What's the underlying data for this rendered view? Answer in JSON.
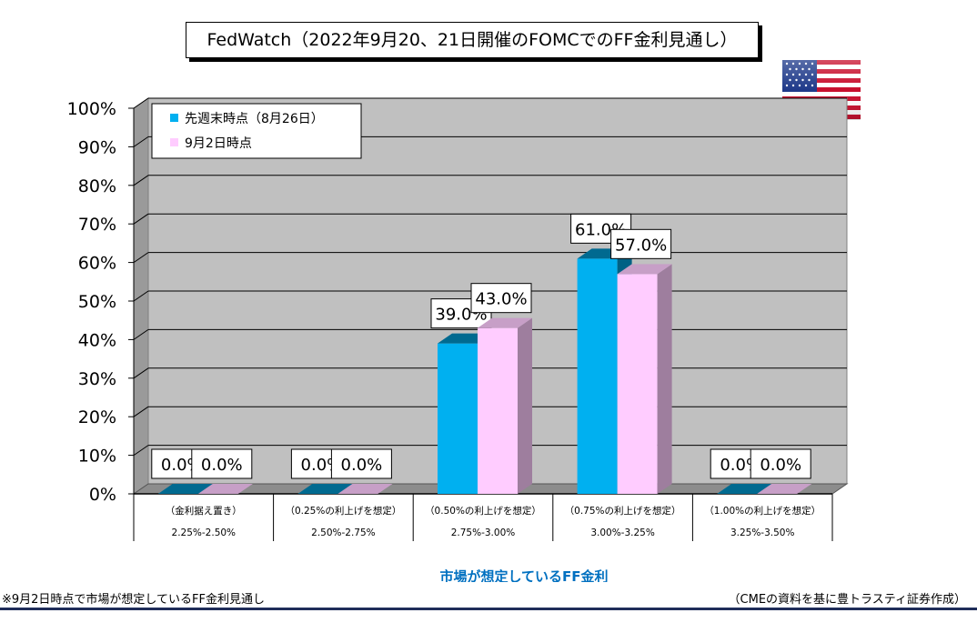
{
  "title": "FedWatch（2022年9月20、21日開催のFOMCでのFF金利見通し）",
  "footer": {
    "note": "※9月2日時点で市場が想定しているFF金利見通し",
    "source": "（CMEの資料を基に豊トラスティ証券作成）"
  },
  "colors": {
    "series1": "#00b0f0",
    "series2": "#ffccff",
    "plot_bg": "#c0c0c0",
    "xaxis_title": "#0070c0"
  },
  "chart_data": {
    "type": "bar",
    "xlabel": "市場が想定しているFF金利",
    "ylabel": "",
    "ylim": [
      0,
      100
    ],
    "yticks": [
      "0%",
      "10%",
      "20%",
      "30%",
      "40%",
      "50%",
      "60%",
      "70%",
      "80%",
      "90%",
      "100%"
    ],
    "categories": [
      {
        "line1": "（金利据え置き）",
        "line2": "2.25%-2.50%"
      },
      {
        "line1": "（0.25%の利上げを想定）",
        "line2": "2.50%-2.75%"
      },
      {
        "line1": "（0.50%の利上げを想定）",
        "line2": "2.75%-3.00%"
      },
      {
        "line1": "（0.75%の利上げを想定）",
        "line2": "3.00%-3.25%"
      },
      {
        "line1": "（1.00%の利上げを想定）",
        "line2": "3.25%-3.50%"
      }
    ],
    "series": [
      {
        "name": "先週末時点（8月26日）",
        "values": [
          0.0,
          0.0,
          39.0,
          61.0,
          0.0
        ],
        "labels": [
          "0.0%",
          "0.0%",
          "39.0%",
          "61.0%",
          "0.0%"
        ]
      },
      {
        "name": "9月2日時点",
        "values": [
          0.0,
          0.0,
          43.0,
          57.0,
          0.0
        ],
        "labels": [
          "0.0%",
          "0.0%",
          "43.0%",
          "57.0%",
          "0.0%"
        ]
      }
    ],
    "legend_position": "top-left",
    "grid": true
  }
}
